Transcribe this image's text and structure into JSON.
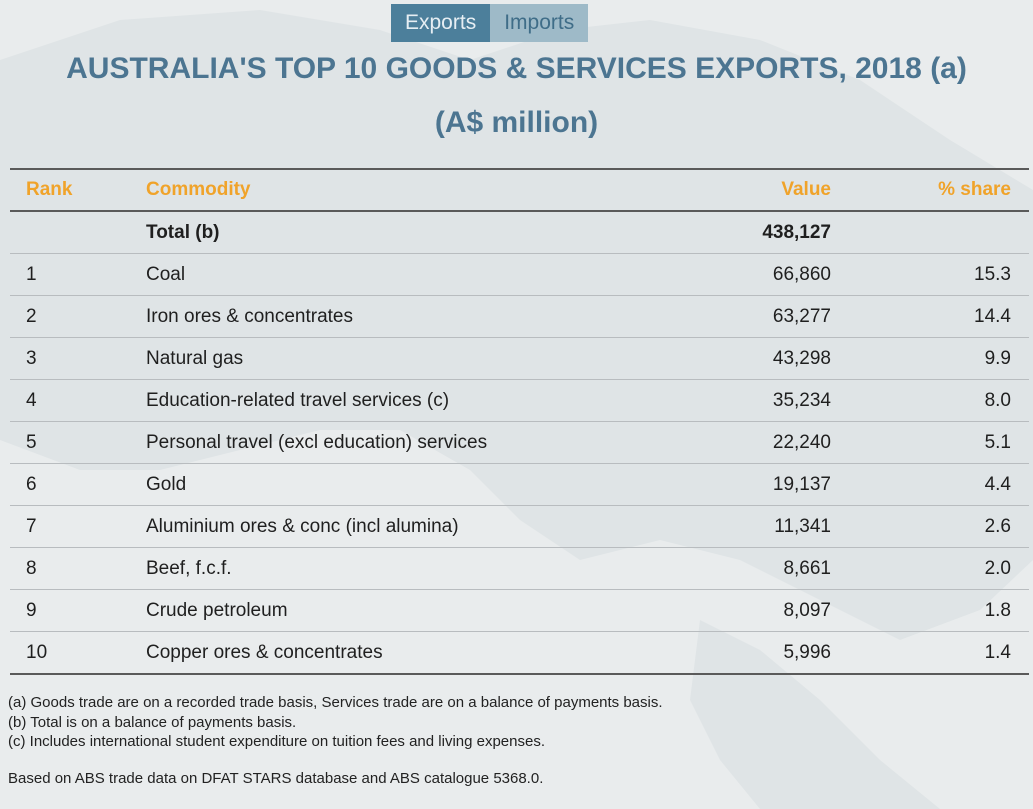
{
  "tabs": [
    {
      "label": "Exports",
      "active": true
    },
    {
      "label": "Imports",
      "active": false
    }
  ],
  "title": {
    "line1": "AUSTRALIA'S TOP 10 GOODS & SERVICES EXPORTS, 2018 (a)",
    "line2": "(A$ million)"
  },
  "table": {
    "headers": {
      "rank": "Rank",
      "commodity": "Commodity",
      "value": "Value",
      "share": "% share"
    },
    "total": {
      "rank": "",
      "commodity": "Total (b)",
      "value": "438,127",
      "share": ""
    },
    "rows": [
      {
        "rank": "1",
        "commodity": "Coal",
        "value": "66,860",
        "share": "15.3"
      },
      {
        "rank": "2",
        "commodity": "Iron ores & concentrates",
        "value": "63,277",
        "share": "14.4"
      },
      {
        "rank": "3",
        "commodity": "Natural gas",
        "value": "43,298",
        "share": "9.9"
      },
      {
        "rank": "4",
        "commodity": "Education-related travel services (c)",
        "value": "35,234",
        "share": "8.0"
      },
      {
        "rank": "5",
        "commodity": "Personal travel (excl education) services",
        "value": "22,240",
        "share": "5.1"
      },
      {
        "rank": "6",
        "commodity": "Gold",
        "value": "19,137",
        "share": "4.4"
      },
      {
        "rank": "7",
        "commodity": "Aluminium ores & conc (incl alumina)",
        "value": "11,341",
        "share": "2.6"
      },
      {
        "rank": "8",
        "commodity": "Beef, f.c.f.",
        "value": "8,661",
        "share": "2.0"
      },
      {
        "rank": "9",
        "commodity": "Crude petroleum",
        "value": "8,097",
        "share": "1.8"
      },
      {
        "rank": "10",
        "commodity": "Copper ores & concentrates",
        "value": "5,996",
        "share": "1.4"
      }
    ]
  },
  "notes": [
    "(a) Goods trade are on a recorded trade basis, Services trade are on a balance of payments basis.",
    "(b) Total is on a balance of payments basis.",
    "(c) Includes international student expenditure on tuition fees and living expenses."
  ],
  "source": "Based on ABS trade data on DFAT STARS database and ABS catalogue 5368.0.",
  "colors": {
    "tab_active": "#4c7f9b",
    "tab_inactive": "#9ebac8",
    "title": "#4c7591",
    "header": "#f0a32a",
    "background": "#e9eced"
  }
}
